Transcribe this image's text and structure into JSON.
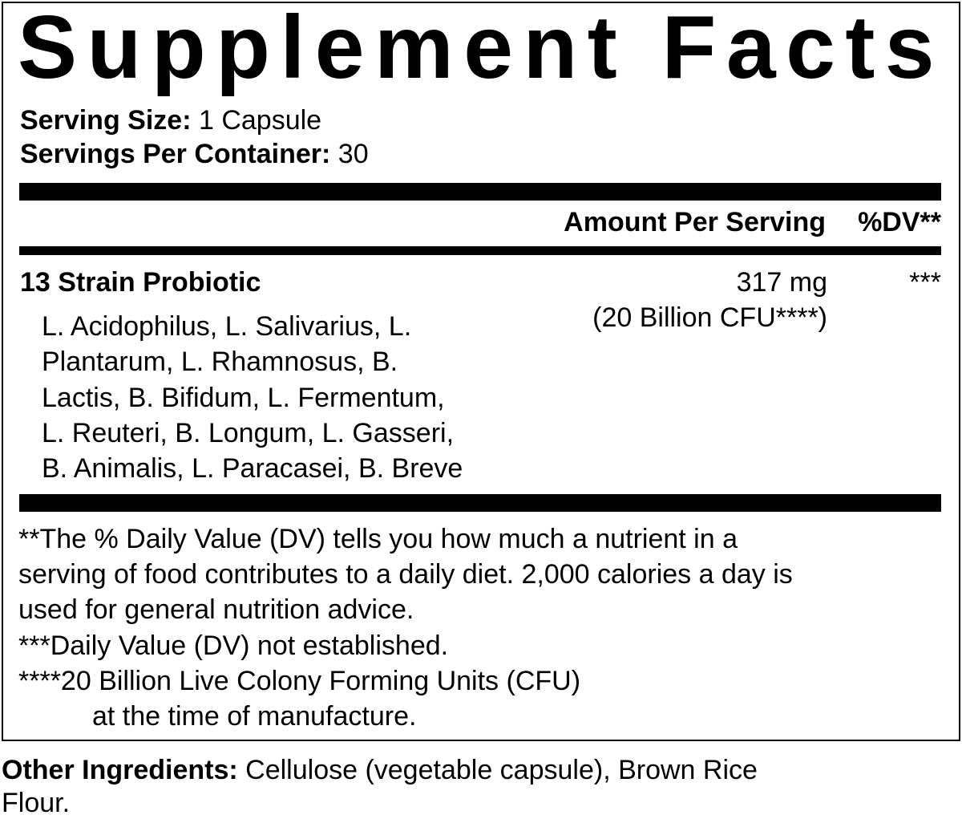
{
  "title": "Supplement Facts",
  "serving_size": {
    "label": "Serving Size:",
    "value": "1 Capsule"
  },
  "servings_per_container": {
    "label": "Servings Per Container:",
    "value": "30"
  },
  "header": {
    "amount": "Amount Per Serving",
    "dv": "%DV**"
  },
  "ingredient": {
    "name": "13 Strain Probiotic",
    "amount": "317 mg",
    "amount_note": "(20 Billion CFU****)",
    "dv": "***",
    "strains": [
      "L. Acidophilus, L. Salivarius, L.",
      "Plantarum, L. Rhamnosus, B.",
      "Lactis, B. Bifidum, L. Fermentum,",
      "L. Reuteri, B. Longum, L. Gasseri,",
      "B. Animalis, L. Paracasei, B. Breve"
    ]
  },
  "footnotes": [
    "**The % Daily Value (DV) tells you how much a nutrient in a",
    "serving of food contributes to a daily diet. 2,000 calories a day is",
    "used for general nutrition advice.",
    "***Daily Value (DV) not established.",
    "****20 Billion Live Colony Forming Units (CFU)",
    "at the time of manufacture."
  ],
  "other_ingredients": {
    "label": "Other Ingredients:",
    "line1": "Cellulose (vegetable capsule), Brown Rice",
    "line2": "Flour."
  }
}
